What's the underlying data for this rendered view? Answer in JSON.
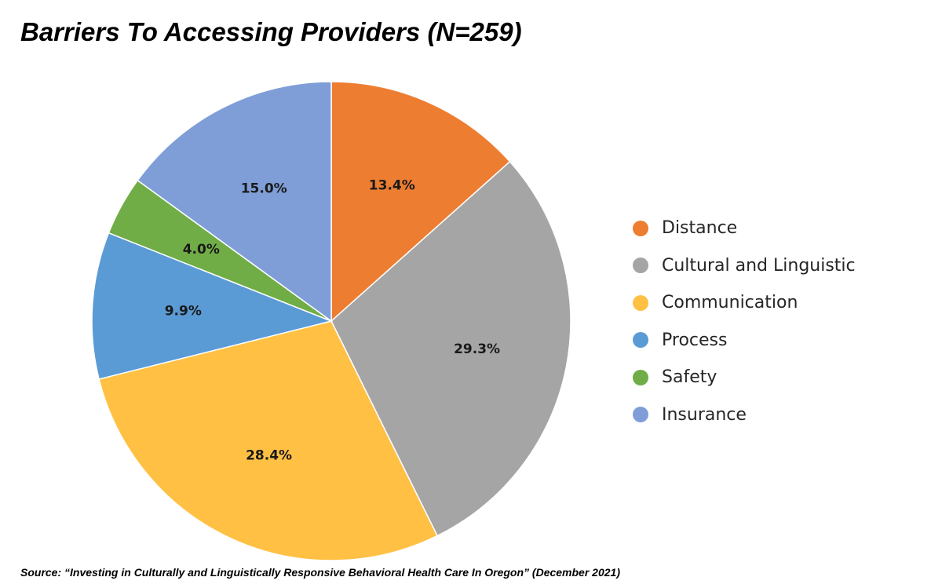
{
  "chart_data": {
    "type": "pie",
    "title": "Barriers To Accessing Providers (N=259)",
    "categories": [
      "Distance",
      "Cultural and Linguistic",
      "Communication",
      "Process",
      "Safety",
      "Insurance"
    ],
    "values": [
      13.4,
      29.3,
      28.4,
      9.9,
      4.0,
      15.0
    ],
    "data_labels": [
      "13.4%",
      "29.3%",
      "28.4%",
      "9.9%",
      "4.0%",
      "15.0%"
    ],
    "colors": [
      "#ED7D31",
      "#A5A5A5",
      "#FFC044",
      "#5B9BD5",
      "#70AD47",
      "#7F9ED8"
    ],
    "legend_position": "right",
    "start_angle": "12 o'clock",
    "direction": "clockwise"
  },
  "source": "Source: “Investing in Culturally and Linguistically Responsive Behavioral Health Care In Oregon” (December 2021)"
}
